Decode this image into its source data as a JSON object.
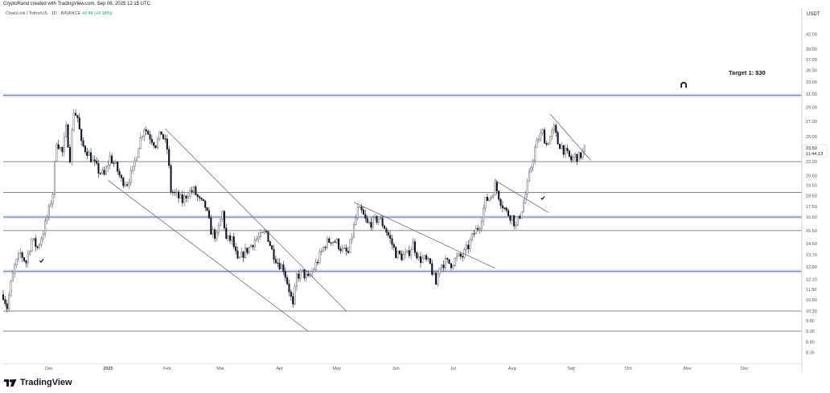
{
  "header": {
    "caption": "CryptoRand created with TradingView.com, Sep 08, 2025 12:15 UTC"
  },
  "legend": {
    "symbol": "ChainLink / TetherUS · 1D · BINANCE",
    "change": "+0.49 (+2.18%)"
  },
  "footer": {
    "brand": "TradingView"
  },
  "colors": {
    "up": "#089981",
    "down": "#131722",
    "level_blue": "#2962ff",
    "line": "#5d606b",
    "grid": "#f0f3fa"
  },
  "chart_data": {
    "type": "candlestick",
    "currency_label": "USDT",
    "x": {
      "start": "2024-11-07",
      "end": "2025-12-31",
      "tick_labels": [
        "Dec",
        "2025",
        "Feb",
        "Mar",
        "Apr",
        "May",
        "Jun",
        "Jul",
        "Aug",
        "Sep",
        "Oct",
        "Nov",
        "Dec"
      ],
      "tick_dates": [
        "2024-12-01",
        "2025-01-01",
        "2025-02-01",
        "2025-03-01",
        "2025-04-01",
        "2025-05-01",
        "2025-06-01",
        "2025-07-01",
        "2025-08-01",
        "2025-09-01",
        "2025-10-01",
        "2025-11-01",
        "2025-12-01"
      ]
    },
    "y": {
      "scale": "log",
      "range": [
        7.9,
        48.0
      ],
      "tick_labels": [
        "42.00",
        "39.00",
        "37.00",
        "35.00",
        "33.00",
        "31.00",
        "29.00",
        "27.00",
        "25.00",
        "23.50",
        "22.00",
        "20.50",
        "19.50",
        "18.50",
        "17.50",
        "16.60",
        "15.50",
        "14.50",
        "13.70",
        "12.90",
        "12.10",
        "11.50",
        "10.90",
        "10.30",
        "9.80",
        "9.30",
        "8.80",
        "8.35"
      ],
      "price_label": "23.50",
      "countdown_label": "11:44:13"
    },
    "price_path": [
      [
        "2024-11-07",
        11.2
      ],
      [
        "2024-11-09",
        10.5
      ],
      [
        "2024-11-11",
        11.8
      ],
      [
        "2024-11-13",
        12.9
      ],
      [
        "2024-11-16",
        13.8
      ],
      [
        "2024-11-19",
        13.2
      ],
      [
        "2024-11-22",
        14.8
      ],
      [
        "2024-11-25",
        14.2
      ],
      [
        "2024-11-28",
        15.4
      ],
      [
        "2024-12-01",
        17.2
      ],
      [
        "2024-12-03",
        18.8
      ],
      [
        "2024-12-05",
        24.5
      ],
      [
        "2024-12-08",
        23.0
      ],
      [
        "2024-12-10",
        26.0
      ],
      [
        "2024-12-12",
        22.5
      ],
      [
        "2024-12-14",
        28.5
      ],
      [
        "2024-12-16",
        27.5
      ],
      [
        "2024-12-18",
        24.0
      ],
      [
        "2024-12-21",
        23.2
      ],
      [
        "2024-12-24",
        22.0
      ],
      [
        "2024-12-27",
        21.0
      ],
      [
        "2024-12-30",
        20.5
      ],
      [
        "2025-01-02",
        22.5
      ],
      [
        "2025-01-05",
        21.5
      ],
      [
        "2025-01-08",
        20.0
      ],
      [
        "2025-01-11",
        19.8
      ],
      [
        "2025-01-14",
        21.0
      ],
      [
        "2025-01-17",
        24.0
      ],
      [
        "2025-01-20",
        26.2
      ],
      [
        "2025-01-23",
        25.0
      ],
      [
        "2025-01-26",
        24.0
      ],
      [
        "2025-01-29",
        25.5
      ],
      [
        "2025-02-01",
        23.5
      ],
      [
        "2025-02-03",
        19.0
      ],
      [
        "2025-02-06",
        18.5
      ],
      [
        "2025-02-09",
        18.0
      ],
      [
        "2025-02-12",
        18.8
      ],
      [
        "2025-02-15",
        19.0
      ],
      [
        "2025-02-18",
        18.0
      ],
      [
        "2025-02-21",
        17.5
      ],
      [
        "2025-02-24",
        15.5
      ],
      [
        "2025-02-27",
        15.0
      ],
      [
        "2025-03-02",
        17.0
      ],
      [
        "2025-03-04",
        14.8
      ],
      [
        "2025-03-07",
        14.8
      ],
      [
        "2025-03-10",
        13.2
      ],
      [
        "2025-03-13",
        13.8
      ],
      [
        "2025-03-16",
        14.2
      ],
      [
        "2025-03-19",
        14.8
      ],
      [
        "2025-03-22",
        15.0
      ],
      [
        "2025-03-25",
        15.4
      ],
      [
        "2025-03-28",
        14.0
      ],
      [
        "2025-03-31",
        13.2
      ],
      [
        "2025-04-03",
        12.8
      ],
      [
        "2025-04-06",
        11.5
      ],
      [
        "2025-04-08",
        10.5
      ],
      [
        "2025-04-10",
        12.3
      ],
      [
        "2025-04-13",
        12.5
      ],
      [
        "2025-04-16",
        12.1
      ],
      [
        "2025-04-19",
        12.8
      ],
      [
        "2025-04-22",
        13.6
      ],
      [
        "2025-04-25",
        14.5
      ],
      [
        "2025-04-28",
        14.8
      ],
      [
        "2025-05-01",
        14.6
      ],
      [
        "2025-05-04",
        14.0
      ],
      [
        "2025-05-07",
        13.8
      ],
      [
        "2025-05-10",
        15.8
      ],
      [
        "2025-05-12",
        17.2
      ],
      [
        "2025-05-14",
        17.0
      ],
      [
        "2025-05-17",
        16.0
      ],
      [
        "2025-05-20",
        16.2
      ],
      [
        "2025-05-23",
        16.5
      ],
      [
        "2025-05-26",
        15.8
      ],
      [
        "2025-05-29",
        14.8
      ],
      [
        "2025-06-01",
        13.8
      ],
      [
        "2025-06-04",
        13.6
      ],
      [
        "2025-06-07",
        13.7
      ],
      [
        "2025-06-10",
        14.5
      ],
      [
        "2025-06-13",
        13.4
      ],
      [
        "2025-06-16",
        13.4
      ],
      [
        "2025-06-19",
        13.0
      ],
      [
        "2025-06-22",
        11.8
      ],
      [
        "2025-06-24",
        13.0
      ],
      [
        "2025-06-27",
        13.2
      ],
      [
        "2025-06-30",
        13.1
      ],
      [
        "2025-07-03",
        13.5
      ],
      [
        "2025-07-06",
        13.6
      ],
      [
        "2025-07-09",
        14.3
      ],
      [
        "2025-07-12",
        15.3
      ],
      [
        "2025-07-15",
        16.0
      ],
      [
        "2025-07-18",
        18.0
      ],
      [
        "2025-07-21",
        18.5
      ],
      [
        "2025-07-23",
        19.5
      ],
      [
        "2025-07-26",
        18.0
      ],
      [
        "2025-07-29",
        17.0
      ],
      [
        "2025-08-01",
        16.6
      ],
      [
        "2025-08-03",
        15.8
      ],
      [
        "2025-08-05",
        16.8
      ],
      [
        "2025-08-07",
        17.8
      ],
      [
        "2025-08-09",
        19.5
      ],
      [
        "2025-08-11",
        21.5
      ],
      [
        "2025-08-13",
        23.5
      ],
      [
        "2025-08-15",
        24.8
      ],
      [
        "2025-08-17",
        25.5
      ],
      [
        "2025-08-19",
        24.0
      ],
      [
        "2025-08-21",
        25.0
      ],
      [
        "2025-08-23",
        26.0
      ],
      [
        "2025-08-25",
        24.2
      ],
      [
        "2025-08-27",
        23.8
      ],
      [
        "2025-08-29",
        23.0
      ],
      [
        "2025-09-01",
        22.2
      ],
      [
        "2025-09-03",
        22.6
      ],
      [
        "2025-09-05",
        22.5
      ],
      [
        "2025-09-07",
        23.0
      ],
      [
        "2025-09-08",
        23.5
      ]
    ],
    "horizontal_levels": [
      {
        "price": 30.8,
        "style": "blue-band"
      },
      {
        "price": 22.0,
        "style": "line"
      },
      {
        "price": 18.8,
        "style": "line"
      },
      {
        "price": 16.6,
        "style": "blue-band"
      },
      {
        "price": 15.5,
        "style": "line"
      },
      {
        "price": 12.6,
        "style": "blue-band"
      },
      {
        "price": 10.3,
        "style": "line"
      },
      {
        "price": 9.3,
        "style": "line"
      }
    ],
    "trendlines": [
      {
        "from": [
          "2025-01-31",
          26.0
        ],
        "to": [
          "2025-05-06",
          10.3
        ]
      },
      {
        "from": [
          "2025-01-01",
          20.0
        ],
        "to": [
          "2025-04-16",
          9.3
        ]
      },
      {
        "from": [
          "2025-05-10",
          17.9
        ],
        "to": [
          "2025-07-23",
          12.8
        ]
      },
      {
        "from": [
          "2025-07-23",
          20.0
        ],
        "to": [
          "2025-08-20",
          17.0
        ]
      },
      {
        "from": [
          "2025-08-21",
          28.0
        ],
        "to": [
          "2025-09-11",
          22.2
        ]
      }
    ],
    "annotations": [
      {
        "text": "Target 1: $30"
      }
    ],
    "markers": [
      {
        "kind": "check",
        "date": "2024-11-27",
        "price": 13.3
      },
      {
        "kind": "check",
        "date": "2025-08-17",
        "price": 18.3
      },
      {
        "kind": "arch",
        "date": "2025-10-30",
        "price": 32.4
      }
    ]
  }
}
